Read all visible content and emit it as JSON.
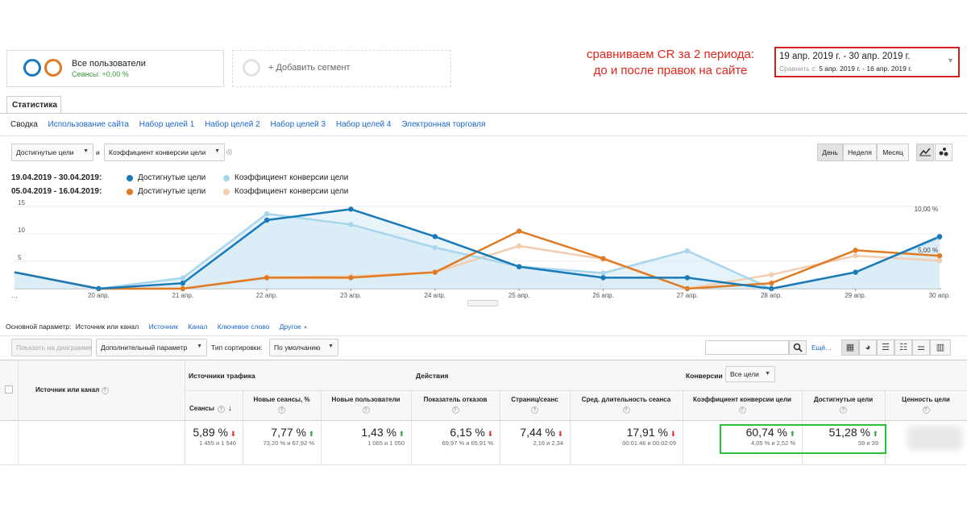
{
  "segments": {
    "main_title": "Все пользователи",
    "main_subtitle": "Сеансы: +0,00 %",
    "add_label": "+ Добавить сегмент"
  },
  "annotation": {
    "line1": "сравниваем CR за 2 периода:",
    "line2": "до и после правок на сайте"
  },
  "daterange": {
    "main": "19 апр. 2019 г. - 30 апр. 2019 г.",
    "compare_prefix": "Сравнить с: ",
    "compare": "5 апр. 2019 г. - 16 апр. 2019 г."
  },
  "tab": "Статистика",
  "subnav": [
    "Сводка",
    "Использование сайта",
    "Набор целей 1",
    "Набор целей 2",
    "Набор целей 3",
    "Набор целей 4",
    "Электронная торговля"
  ],
  "metric_selectors": {
    "first": "Достигнутые цели",
    "and": "и",
    "second": "Коэффициент конверсии цели"
  },
  "period_buttons": [
    "День",
    "Неделя",
    "Месяц"
  ],
  "legend": {
    "period1": "19.04.2019 - 30.04.2019:",
    "period2": "05.04.2019 - 16.04.2019:",
    "s1": "Достигнутые цели",
    "s2": "Коэффициент конверсии цели",
    "s3": "Достигнутые цели",
    "s4": "Коэффициент конверсии цели"
  },
  "colors": {
    "goals_current": "#1a7ab8",
    "cr_current": "#a8d6ec",
    "goals_previous": "#e07b25",
    "cr_previous": "#f2cdb0",
    "highlight": "#27c43a",
    "annotation": "#e3261b"
  },
  "chart_data": {
    "type": "line",
    "x": [
      "…",
      "20 апр.",
      "21 апр.",
      "22 апр.",
      "23 апр.",
      "24 апр.",
      "25 апр.",
      "26 апр.",
      "27 апр.",
      "28 апр.",
      "29 апр.",
      "30 апр."
    ],
    "left_ticks": [
      "5",
      "10",
      "15"
    ],
    "right_ticks": [
      "5,00 %",
      "10,00 %"
    ],
    "ylim_left": [
      0,
      15
    ],
    "ylim_right": [
      0,
      10
    ],
    "series": [
      {
        "name": "Достигнутые цели",
        "period": "19.04.2019 - 30.04.2019",
        "axis": "left",
        "values": [
          3,
          0,
          1,
          12.5,
          14.5,
          9.5,
          4,
          2,
          2,
          0,
          3,
          9.5
        ]
      },
      {
        "name": "Коэффициент конверсии цели",
        "period": "19.04.2019 - 30.04.2019",
        "axis": "right",
        "values": [
          2,
          0,
          1.3,
          9.1,
          7.8,
          5,
          2.7,
          1.9,
          4.6,
          0,
          2,
          6.2
        ]
      },
      {
        "name": "Достигнутые цели",
        "period": "05.04.2019 - 16.04.2019",
        "axis": "left",
        "values": [
          3,
          0,
          0,
          2,
          2,
          3,
          10.5,
          5.5,
          0,
          1,
          7,
          6
        ]
      },
      {
        "name": "Коэффициент конверсии цели",
        "period": "05.04.2019 - 16.04.2019",
        "axis": "right",
        "values": [
          2,
          0,
          0,
          1.4,
          1.5,
          2,
          5.2,
          3.6,
          0,
          1.7,
          4,
          3.4
        ]
      }
    ]
  },
  "table_controls": {
    "primary_label": "Основной параметр:",
    "primary_value": "Источник или канал",
    "alt_dims": [
      "Источник",
      "Канал",
      "Ключевое слово"
    ],
    "other": "Другое",
    "show_on_chart": "Показать на диаграмме",
    "secondary": "Дополнительный параметр",
    "sort_label": "Тип сортировки:",
    "sort_value": "По умолчанию",
    "more": "Ещё..."
  },
  "table": {
    "dim_header": "Источник или канал",
    "groups": {
      "traffic": "Источники трафика",
      "actions": "Действия",
      "conversions": "Конверсии",
      "goal_select": "Все цели"
    },
    "headers": [
      "Сеансы",
      "Новые сеансы, %",
      "Новые пользователи",
      "Показатель отказов",
      "Страниц/сеанс",
      "Сред. длительность сеанса",
      "Коэффициент конверсии цели",
      "Достигнутые цели",
      "Ценность цели"
    ],
    "row": [
      {
        "value": "5,89 %",
        "trend": "down",
        "sub": "1 455 и 1 546"
      },
      {
        "value": "7,77 %",
        "trend": "up",
        "sub": "73,20 % и 67,92 %"
      },
      {
        "value": "1,43 %",
        "trend": "up",
        "sub": "1 065 и 1 050"
      },
      {
        "value": "6,15 %",
        "trend": "down",
        "sub": "69,97 % и 65,91 %"
      },
      {
        "value": "7,44 %",
        "trend": "down",
        "sub": "2,16 и 2,34"
      },
      {
        "value": "17,91 %",
        "trend": "down",
        "sub": "00:01:46 и 00:02:09"
      },
      {
        "value": "60,74 %",
        "trend": "up",
        "sub": "4,05 % и 2,52 %"
      },
      {
        "value": "51,28 %",
        "trend": "up",
        "sub": "59 и 39"
      }
    ]
  }
}
